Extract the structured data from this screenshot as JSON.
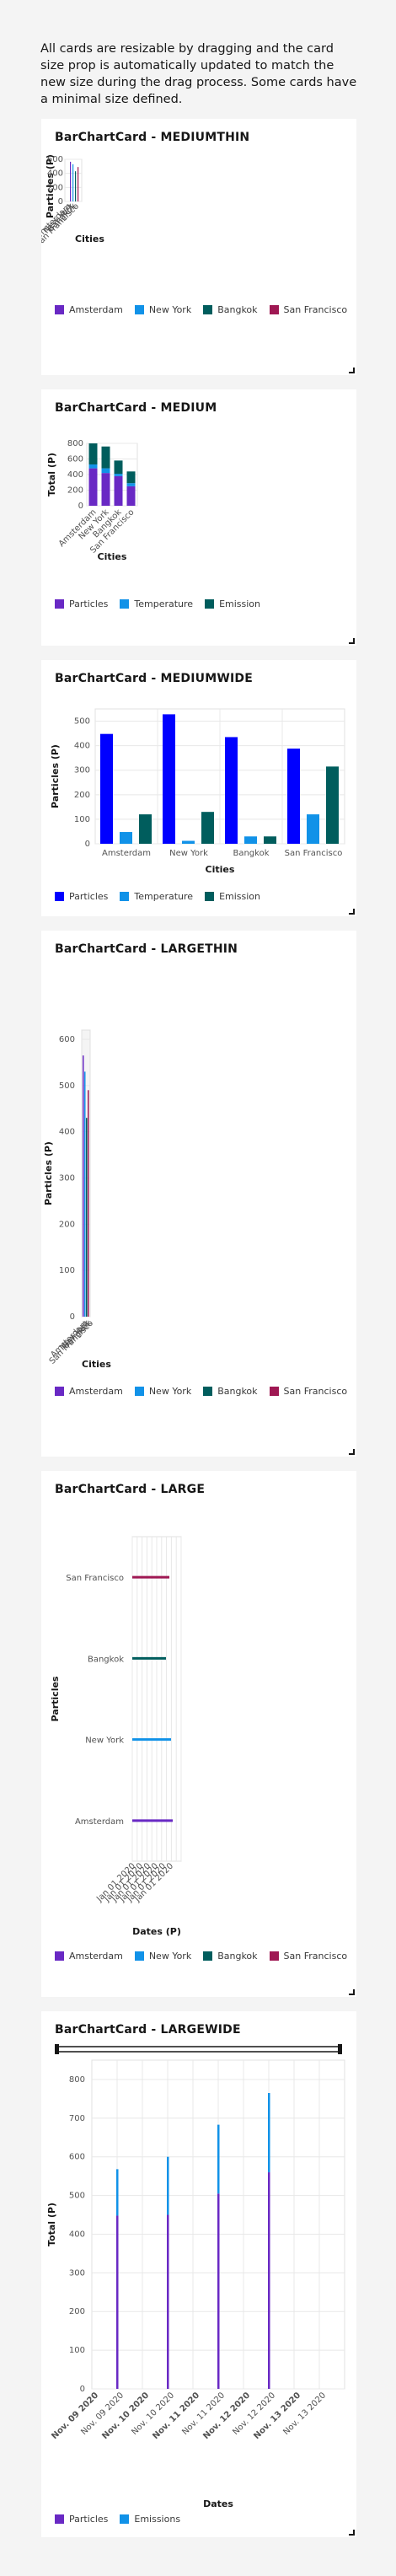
{
  "intro": "All cards are resizable by dragging and the card size prop is automatically updated to match the new size during the drag process. Some cards have a minimal size defined.",
  "colors": {
    "purple": "#6929c4",
    "blue": "#1192e8",
    "teal": "#005d5d",
    "magenta": "#9f1853",
    "brightblue": "#0000ff"
  },
  "cards": {
    "mediumthin": {
      "title": "BarChartCard - MEDIUMTHIN",
      "ylabel": "Particles (P)",
      "xlabel": "Cities",
      "legend": [
        "Amsterdam",
        "New York",
        "Bangkok",
        "San Francisco"
      ]
    },
    "medium": {
      "title": "BarChartCard - MEDIUM",
      "ylabel": "Total (P)",
      "xlabel": "Cities",
      "legend": [
        "Particles",
        "Temperature",
        "Emission"
      ]
    },
    "mediumwide": {
      "title": "BarChartCard - MEDIUMWIDE",
      "ylabel": "Particles (P)",
      "xlabel": "Cities",
      "legend": [
        "Particles",
        "Temperature",
        "Emission"
      ]
    },
    "largethin": {
      "title": "BarChartCard - LARGETHIN",
      "ylabel": "Particles (P)",
      "xlabel": "Cities",
      "legend": [
        "Amsterdam",
        "New York",
        "Bangkok",
        "San Francisco"
      ]
    },
    "large": {
      "title": "BarChartCard - LARGE",
      "ylabel": "Particles",
      "xlabel": "Dates (P)",
      "legend": [
        "Amsterdam",
        "New York",
        "Bangkok",
        "San Francisco"
      ]
    },
    "largewide": {
      "title": "BarChartCard - LARGEWIDE",
      "ylabel": "Total (P)",
      "xlabel": "Dates",
      "legend": [
        "Particles",
        "Emissions"
      ]
    }
  },
  "chart_data": [
    {
      "type": "bar",
      "title": "BarChartCard - MEDIUMTHIN",
      "xlabel": "Cities",
      "ylabel": "Particles (P)",
      "categories": [
        "Amsterdam",
        "New York",
        "Bangkok",
        "San Francisco"
      ],
      "values": [
        565,
        530,
        430,
        490
      ],
      "ylim": [
        0,
        600
      ],
      "yticks": [
        0,
        200,
        400,
        600
      ],
      "grid": true,
      "legend_position": "bottom"
    },
    {
      "type": "bar",
      "stacked": true,
      "title": "BarChartCard - MEDIUM",
      "xlabel": "Cities",
      "ylabel": "Total (P)",
      "categories": [
        "Amsterdam",
        "New York",
        "Bangkok",
        "San Francisco"
      ],
      "series": [
        {
          "name": "Particles",
          "values": [
            480,
            420,
            380,
            250
          ]
        },
        {
          "name": "Temperature",
          "values": [
            50,
            60,
            30,
            40
          ]
        },
        {
          "name": "Emission",
          "values": [
            270,
            280,
            170,
            150
          ]
        }
      ],
      "ylim": [
        0,
        800
      ],
      "yticks": [
        0,
        200,
        400,
        600,
        800
      ],
      "grid": true,
      "legend_position": "bottom"
    },
    {
      "type": "bar",
      "title": "BarChartCard - MEDIUMWIDE",
      "xlabel": "Cities",
      "ylabel": "Particles (P)",
      "categories": [
        "Amsterdam",
        "New York",
        "Bangkok",
        "San Francisco"
      ],
      "series": [
        {
          "name": "Particles",
          "values": [
            448,
            528,
            435,
            388
          ]
        },
        {
          "name": "Temperature",
          "values": [
            48,
            12,
            30,
            120
          ]
        },
        {
          "name": "Emission",
          "values": [
            120,
            130,
            30,
            315
          ]
        }
      ],
      "ylim": [
        0,
        550
      ],
      "yticks": [
        0,
        100,
        200,
        300,
        400,
        500
      ],
      "grid": true,
      "legend_position": "bottom"
    },
    {
      "type": "bar",
      "title": "BarChartCard - LARGETHIN",
      "xlabel": "Cities",
      "ylabel": "Particles (P)",
      "categories": [
        "Amsterdam",
        "New York",
        "Bangkok",
        "San Francisco"
      ],
      "values": [
        565,
        530,
        430,
        490
      ],
      "ylim": [
        0,
        620
      ],
      "yticks": [
        0,
        100,
        200,
        300,
        400,
        500,
        600
      ],
      "grid": true,
      "legend_position": "bottom"
    },
    {
      "type": "bar",
      "orientation": "horizontal",
      "title": "BarChartCard - LARGE",
      "xlabel": "Dates (P)",
      "ylabel": "Particles",
      "categories": [
        "Amsterdam",
        "New York",
        "Bangkok",
        "San Francisco"
      ],
      "x_tick_labels": [
        "Jan 01 2020",
        "Jan 01 2020",
        "Jan 01 2020",
        "Jan 01 2020",
        "Jan 01 2020",
        "Jan 01 2020"
      ],
      "grid": true,
      "legend_position": "bottom"
    },
    {
      "type": "bar",
      "stacked": true,
      "title": "BarChartCard - LARGEWIDE",
      "xlabel": "Dates",
      "ylabel": "Total (P)",
      "x": [
        "Nov. 09 2020",
        "Nov. 10 2020",
        "Nov. 11 2020",
        "Nov. 12 2020",
        "Nov. 13 2020"
      ],
      "x_tick_labels": [
        "Nov. 09 2020",
        "Nov. 09 2020",
        "Nov. 10 2020",
        "Nov. 10 2020",
        "Nov. 11 2020",
        "Nov. 11 2020",
        "Nov. 12 2020",
        "Nov. 12 2020",
        "Nov. 13 2020",
        "Nov. 13 2020"
      ],
      "series": [
        {
          "name": "Particles",
          "values": [
            448,
            450,
            505,
            560,
            0
          ]
        },
        {
          "name": "Emissions",
          "values": [
            120,
            150,
            178,
            205,
            0
          ]
        }
      ],
      "ylim": [
        0,
        850
      ],
      "yticks": [
        0,
        100,
        200,
        300,
        400,
        500,
        600,
        700,
        800
      ],
      "grid": true,
      "legend_position": "bottom"
    }
  ]
}
